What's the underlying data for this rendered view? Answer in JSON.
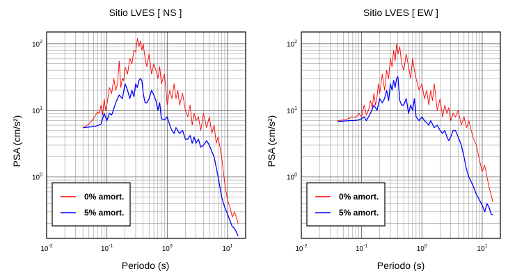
{
  "chart_data": [
    {
      "type": "line",
      "title": "Sitio LVES [ NS ]",
      "xlabel": "Periodo (s)",
      "ylabel": "PSA (cm/s²)",
      "xscale": "log",
      "yscale": "log",
      "xlim": [
        0.01,
        20
      ],
      "ylim": [
        0.12,
        150
      ],
      "grid": true,
      "legend_position": "bottom-left",
      "x_ticks": [
        {
          "base": "10",
          "exp": "-2",
          "value": 0.01
        },
        {
          "base": "10",
          "exp": "-1",
          "value": 0.1
        },
        {
          "base": "10",
          "exp": "0",
          "value": 1
        },
        {
          "base": "10",
          "exp": "1",
          "value": 10
        }
      ],
      "y_ticks": [
        {
          "base": "10",
          "exp": "0",
          "value": 1
        },
        {
          "base": "10",
          "exp": "1",
          "value": 10
        },
        {
          "base": "10",
          "exp": "2",
          "value": 100
        }
      ],
      "series": [
        {
          "name": "0% amort.",
          "color": "#ff0000",
          "x": [
            0.04,
            0.05,
            0.06,
            0.07,
            0.075,
            0.08,
            0.085,
            0.09,
            0.095,
            0.1,
            0.11,
            0.12,
            0.13,
            0.14,
            0.15,
            0.16,
            0.17,
            0.18,
            0.19,
            0.2,
            0.22,
            0.24,
            0.26,
            0.28,
            0.3,
            0.32,
            0.34,
            0.36,
            0.38,
            0.4,
            0.43,
            0.46,
            0.5,
            0.55,
            0.6,
            0.65,
            0.7,
            0.75,
            0.8,
            0.9,
            1.0,
            1.1,
            1.2,
            1.3,
            1.4,
            1.5,
            1.6,
            1.8,
            2.0,
            2.2,
            2.4,
            2.6,
            2.8,
            3.0,
            3.3,
            3.6,
            4.0,
            4.5,
            5.0,
            5.5,
            6.0,
            6.5,
            7.0,
            8.0,
            9.0,
            10.0,
            11.0,
            12.0,
            13.0,
            14.0,
            15.0
          ],
          "y": [
            5.5,
            6.2,
            7.5,
            9.5,
            9,
            12,
            8.5,
            15,
            10,
            12,
            22,
            18,
            30,
            20,
            25,
            55,
            22,
            30,
            28,
            45,
            35,
            60,
            50,
            80,
            75,
            120,
            90,
            110,
            80,
            100,
            60,
            45,
            70,
            35,
            50,
            40,
            30,
            45,
            25,
            35,
            12,
            20,
            15,
            25,
            15,
            20,
            12,
            18,
            10,
            8,
            12,
            6,
            9,
            7,
            8,
            5,
            9,
            5.5,
            8,
            4.5,
            6,
            3.2,
            4,
            2,
            0.8,
            0.45,
            0.35,
            0.25,
            0.3,
            0.25,
            0.2
          ]
        },
        {
          "name": "5% amort.",
          "color": "#0000ff",
          "x": [
            0.04,
            0.05,
            0.06,
            0.07,
            0.08,
            0.09,
            0.1,
            0.11,
            0.12,
            0.14,
            0.16,
            0.18,
            0.2,
            0.22,
            0.24,
            0.26,
            0.28,
            0.3,
            0.32,
            0.34,
            0.36,
            0.38,
            0.4,
            0.43,
            0.46,
            0.5,
            0.55,
            0.6,
            0.65,
            0.7,
            0.75,
            0.8,
            0.9,
            1.0,
            1.1,
            1.2,
            1.3,
            1.4,
            1.6,
            1.8,
            2.0,
            2.2,
            2.4,
            2.6,
            2.8,
            3.0,
            3.3,
            3.6,
            4.0,
            4.5,
            5.0,
            5.5,
            6.0,
            7.0,
            8.0,
            9.0,
            10.0,
            11.0,
            12.0,
            13.0,
            14.0,
            15.0
          ],
          "y": [
            5.5,
            5.6,
            5.7,
            5.9,
            6.2,
            9,
            7,
            9,
            8.5,
            13,
            17,
            15,
            25,
            20,
            15,
            20,
            16,
            25,
            22,
            28,
            30,
            28,
            18,
            13,
            13,
            15,
            20,
            17,
            14,
            10,
            13,
            7.5,
            7.2,
            8,
            6,
            5,
            4.5,
            5.5,
            4.5,
            5,
            3.7,
            3.7,
            4.2,
            3.2,
            4,
            3.2,
            3.7,
            2.8,
            3,
            3.5,
            3,
            2.4,
            2,
            1,
            0.5,
            0.35,
            0.28,
            0.22,
            0.18,
            0.17,
            0.15,
            0.13
          ]
        }
      ]
    },
    {
      "type": "line",
      "title": "Sitio LVES [ EW ]",
      "xlabel": "Periodo (s)",
      "ylabel": "PSA (cm/s²)",
      "xscale": "log",
      "yscale": "log",
      "xlim": [
        0.01,
        20
      ],
      "ylim": [
        0.12,
        150
      ],
      "grid": true,
      "legend_position": "bottom-left",
      "x_ticks": [
        {
          "base": "10",
          "exp": "-2",
          "value": 0.01
        },
        {
          "base": "10",
          "exp": "-1",
          "value": 0.1
        },
        {
          "base": "10",
          "exp": "0",
          "value": 1
        },
        {
          "base": "10",
          "exp": "1",
          "value": 10
        }
      ],
      "y_ticks": [
        {
          "base": "10",
          "exp": "0",
          "value": 1
        },
        {
          "base": "10",
          "exp": "1",
          "value": 10
        },
        {
          "base": "10",
          "exp": "2",
          "value": 100
        }
      ],
      "series": [
        {
          "name": "0% amort.",
          "color": "#ff0000",
          "x": [
            0.04,
            0.05,
            0.06,
            0.07,
            0.08,
            0.09,
            0.1,
            0.11,
            0.12,
            0.13,
            0.14,
            0.15,
            0.16,
            0.17,
            0.18,
            0.19,
            0.2,
            0.22,
            0.24,
            0.26,
            0.28,
            0.3,
            0.32,
            0.34,
            0.36,
            0.38,
            0.4,
            0.43,
            0.46,
            0.5,
            0.55,
            0.6,
            0.65,
            0.7,
            0.75,
            0.8,
            0.9,
            1.0,
            1.1,
            1.2,
            1.3,
            1.4,
            1.5,
            1.6,
            1.8,
            2.0,
            2.2,
            2.4,
            2.6,
            2.8,
            3.0,
            3.3,
            3.6,
            4.0,
            4.5,
            5.0,
            5.5,
            6.0,
            7.0,
            8.0,
            9.0,
            10.0,
            11.0,
            12.0,
            13.0,
            14.0,
            15.0
          ],
          "y": [
            7,
            7.2,
            7.5,
            8,
            7.8,
            9,
            8,
            12,
            8.5,
            10,
            14,
            11,
            18,
            12,
            16,
            25,
            18,
            35,
            20,
            40,
            30,
            60,
            45,
            80,
            55,
            100,
            70,
            90,
            50,
            40,
            70,
            45,
            30,
            60,
            40,
            30,
            20,
            25,
            15,
            20,
            12,
            20,
            14,
            25,
            10,
            15,
            8,
            12,
            9,
            11,
            7,
            9,
            8,
            10,
            6,
            8,
            5.5,
            7,
            4,
            3,
            1.8,
            1.2,
            1.5,
            1.0,
            0.7,
            0.55,
            0.42
          ]
        },
        {
          "name": "5% amort.",
          "color": "#0000ff",
          "x": [
            0.04,
            0.05,
            0.06,
            0.07,
            0.08,
            0.09,
            0.1,
            0.11,
            0.12,
            0.14,
            0.16,
            0.18,
            0.2,
            0.22,
            0.24,
            0.26,
            0.28,
            0.3,
            0.32,
            0.34,
            0.36,
            0.38,
            0.4,
            0.43,
            0.46,
            0.5,
            0.55,
            0.6,
            0.65,
            0.7,
            0.75,
            0.8,
            0.9,
            1.0,
            1.1,
            1.2,
            1.3,
            1.4,
            1.6,
            1.8,
            2.0,
            2.2,
            2.4,
            2.6,
            2.8,
            3.0,
            3.3,
            3.6,
            4.0,
            4.5,
            5.0,
            5.5,
            6.0,
            7.0,
            8.0,
            9.0,
            10.0,
            11.0,
            12.0,
            13.0,
            14.0,
            15.0
          ],
          "y": [
            6.8,
            6.9,
            7,
            7,
            7.1,
            7.2,
            7.5,
            8,
            7,
            9,
            12,
            10,
            15,
            13,
            15,
            20,
            14,
            25,
            20,
            28,
            22,
            30,
            32,
            14,
            12,
            12,
            15,
            9,
            12,
            10,
            15,
            8,
            7,
            8,
            7,
            6.5,
            6,
            7,
            5.5,
            6,
            5,
            4.5,
            5,
            4,
            3.5,
            4,
            5,
            5,
            4,
            3,
            2,
            1.3,
            1,
            0.75,
            0.55,
            0.45,
            0.38,
            0.3,
            0.4,
            0.35,
            0.28,
            0.27
          ]
        }
      ]
    }
  ]
}
